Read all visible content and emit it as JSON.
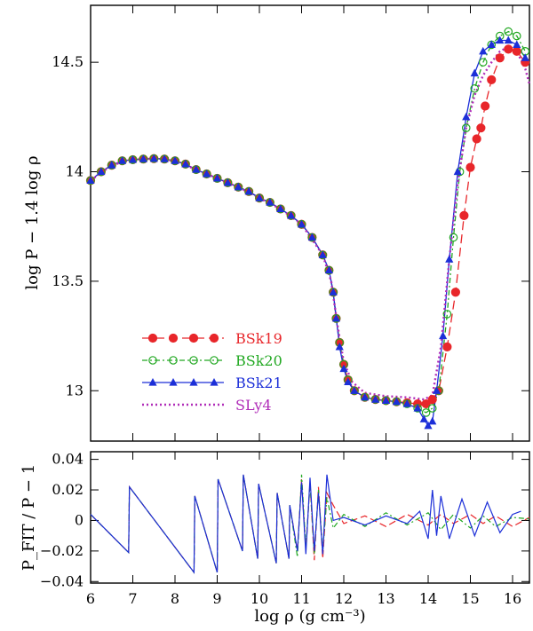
{
  "chart_data": [
    {
      "type": "line",
      "panel": "top",
      "ylabel": "log P − 1.4 log ρ",
      "xlim": [
        6,
        16.4
      ],
      "ylim": [
        12.77,
        14.76
      ],
      "xticks": [
        6,
        7,
        8,
        9,
        10,
        11,
        12,
        13,
        14,
        15,
        16
      ],
      "yticks": [
        {
          "v": 13,
          "label": "13"
        },
        {
          "v": 13.5,
          "label": "13.5"
        },
        {
          "v": 14,
          "label": "14"
        },
        {
          "v": 14.5,
          "label": "14.5"
        }
      ],
      "legend": {
        "position": "lower-left",
        "entries": [
          {
            "label": "BSk19",
            "color": "#e8262a"
          },
          {
            "label": "BSk20",
            "color": "#22a822"
          },
          {
            "label": "BSk21",
            "color": "#1c2fd8"
          },
          {
            "label": "SLy4",
            "color": "#b02cb8"
          }
        ]
      },
      "series": [
        {
          "name": "BSk19",
          "color": "#e8262a",
          "marker": "filled-circle",
          "x": [
            6.0,
            6.25,
            6.5,
            6.75,
            7.0,
            7.25,
            7.5,
            7.75,
            8.0,
            8.25,
            8.5,
            8.75,
            9.0,
            9.25,
            9.5,
            9.75,
            10.0,
            10.25,
            10.5,
            10.75,
            11.0,
            11.25,
            11.5,
            11.65,
            11.75,
            11.82,
            11.9,
            12.0,
            12.1,
            12.25,
            12.5,
            12.75,
            13.0,
            13.25,
            13.5,
            13.75,
            13.95,
            14.1,
            14.25,
            14.45,
            14.65,
            14.85,
            15.0,
            15.15,
            15.25,
            15.35,
            15.5,
            15.7,
            15.9,
            16.1,
            16.3
          ],
          "y": [
            13.96,
            14.0,
            14.03,
            14.05,
            14.055,
            14.058,
            14.06,
            14.058,
            14.05,
            14.035,
            14.01,
            13.99,
            13.97,
            13.95,
            13.93,
            13.91,
            13.88,
            13.86,
            13.83,
            13.8,
            13.76,
            13.7,
            13.62,
            13.55,
            13.45,
            13.33,
            13.22,
            13.12,
            13.05,
            13.0,
            12.97,
            12.96,
            12.955,
            12.95,
            12.945,
            12.94,
            12.94,
            12.96,
            13.0,
            13.2,
            13.45,
            13.8,
            14.02,
            14.15,
            14.2,
            14.3,
            14.42,
            14.52,
            14.56,
            14.55,
            14.5
          ]
        },
        {
          "name": "BSk20",
          "color": "#22a822",
          "marker": "open-circle",
          "x": [
            6.0,
            6.25,
            6.5,
            6.75,
            7.0,
            7.25,
            7.5,
            7.75,
            8.0,
            8.25,
            8.5,
            8.75,
            9.0,
            9.25,
            9.5,
            9.75,
            10.0,
            10.25,
            10.5,
            10.75,
            11.0,
            11.25,
            11.5,
            11.65,
            11.75,
            11.82,
            11.9,
            12.0,
            12.1,
            12.25,
            12.5,
            12.75,
            13.0,
            13.25,
            13.5,
            13.75,
            13.95,
            14.1,
            14.25,
            14.45,
            14.6,
            14.75,
            14.9,
            15.1,
            15.3,
            15.5,
            15.7,
            15.9,
            16.1,
            16.3
          ],
          "y": [
            13.96,
            14.0,
            14.03,
            14.05,
            14.055,
            14.058,
            14.06,
            14.058,
            14.05,
            14.035,
            14.01,
            13.99,
            13.97,
            13.95,
            13.93,
            13.91,
            13.88,
            13.86,
            13.83,
            13.8,
            13.76,
            13.7,
            13.62,
            13.55,
            13.45,
            13.33,
            13.22,
            13.12,
            13.05,
            13.0,
            12.97,
            12.96,
            12.955,
            12.95,
            12.94,
            12.92,
            12.9,
            12.92,
            13.0,
            13.35,
            13.7,
            14.0,
            14.2,
            14.38,
            14.5,
            14.58,
            14.62,
            14.64,
            14.62,
            14.55
          ]
        },
        {
          "name": "BSk21",
          "color": "#1c2fd8",
          "marker": "filled-triangle",
          "x": [
            6.0,
            6.25,
            6.5,
            6.75,
            7.0,
            7.25,
            7.5,
            7.75,
            8.0,
            8.25,
            8.5,
            8.75,
            9.0,
            9.25,
            9.5,
            9.75,
            10.0,
            10.25,
            10.5,
            10.75,
            11.0,
            11.25,
            11.5,
            11.65,
            11.75,
            11.82,
            11.9,
            12.0,
            12.1,
            12.25,
            12.5,
            12.75,
            13.0,
            13.25,
            13.5,
            13.75,
            13.9,
            14.0,
            14.1,
            14.2,
            14.35,
            14.5,
            14.7,
            14.9,
            15.1,
            15.3,
            15.5,
            15.7,
            15.9,
            16.1,
            16.3
          ],
          "y": [
            13.96,
            14.0,
            14.03,
            14.05,
            14.055,
            14.058,
            14.06,
            14.058,
            14.05,
            14.035,
            14.01,
            13.99,
            13.97,
            13.95,
            13.93,
            13.91,
            13.88,
            13.86,
            13.83,
            13.8,
            13.76,
            13.7,
            13.62,
            13.55,
            13.45,
            13.33,
            13.2,
            13.1,
            13.04,
            13.0,
            12.97,
            12.96,
            12.955,
            12.95,
            12.94,
            12.92,
            12.87,
            12.84,
            12.86,
            13.0,
            13.25,
            13.6,
            14.0,
            14.25,
            14.45,
            14.55,
            14.58,
            14.6,
            14.6,
            14.58,
            14.52
          ]
        },
        {
          "name": "SLy4",
          "color": "#b02cb8",
          "marker": "none",
          "x": [
            6.0,
            6.5,
            7.0,
            7.5,
            8.0,
            8.5,
            9.0,
            9.5,
            10.0,
            10.5,
            11.0,
            11.5,
            11.7,
            11.85,
            12.0,
            12.2,
            12.5,
            13.0,
            13.5,
            13.9,
            14.1,
            14.3,
            14.5,
            14.7,
            14.9,
            15.1,
            15.3,
            15.5,
            15.7,
            15.9,
            16.1,
            16.3,
            16.4
          ],
          "y": [
            13.96,
            14.03,
            14.055,
            14.06,
            14.05,
            14.01,
            13.97,
            13.93,
            13.88,
            13.83,
            13.76,
            13.62,
            13.5,
            13.3,
            13.13,
            13.04,
            12.99,
            12.975,
            12.97,
            12.96,
            12.98,
            13.2,
            13.6,
            13.95,
            14.2,
            14.35,
            14.44,
            14.5,
            14.55,
            14.57,
            14.55,
            14.47,
            14.4
          ]
        }
      ]
    },
    {
      "type": "line",
      "panel": "bottom",
      "xlabel": "log ρ  (g cm⁻³)",
      "ylabel": "P_FIT / P − 1",
      "xlim": [
        6,
        16.4
      ],
      "ylim": [
        -0.041,
        0.045
      ],
      "xticks": [
        6,
        7,
        8,
        9,
        10,
        11,
        12,
        13,
        14,
        15,
        16
      ],
      "yticks": [
        {
          "v": -0.04,
          "label": "−0.04"
        },
        {
          "v": -0.02,
          "label": "−0.02"
        },
        {
          "v": 0,
          "label": "0"
        },
        {
          "v": 0.02,
          "label": "0.02"
        },
        {
          "v": 0.04,
          "label": "0.04"
        }
      ],
      "series": [
        {
          "name": "BSk19",
          "color": "#e8262a",
          "dash": "8,4",
          "x": [
            6.0,
            6.9,
            6.92,
            8.45,
            8.47,
            9.0,
            9.02,
            9.6,
            9.62,
            9.96,
            9.98,
            10.4,
            10.42,
            10.7,
            10.72,
            10.9,
            11.0,
            11.1,
            11.2,
            11.3,
            11.4,
            11.5,
            11.6,
            11.75,
            12.0,
            12.5,
            13.0,
            13.5,
            14.0,
            14.3,
            14.6,
            15.0,
            15.3,
            15.6,
            16.0,
            16.4
          ],
          "y": [
            0.004,
            -0.021,
            0.022,
            -0.034,
            0.016,
            -0.034,
            0.027,
            -0.02,
            0.03,
            -0.025,
            0.024,
            -0.028,
            0.018,
            -0.025,
            0.01,
            -0.02,
            0.027,
            -0.02,
            0.025,
            -0.026,
            0.022,
            -0.025,
            0.018,
            0.01,
            -0.002,
            0.003,
            -0.004,
            0.004,
            -0.003,
            0.004,
            -0.002,
            0.004,
            -0.002,
            0.003,
            -0.004,
            0.002
          ]
        },
        {
          "name": "BSk20",
          "color": "#22a822",
          "dash": "6,3,2,3",
          "x": [
            6.0,
            6.9,
            6.92,
            8.45,
            8.47,
            9.0,
            9.02,
            9.6,
            9.62,
            9.96,
            9.98,
            10.4,
            10.42,
            10.7,
            10.72,
            10.9,
            11.0,
            11.1,
            11.2,
            11.3,
            11.4,
            11.5,
            11.6,
            11.75,
            12.0,
            12.5,
            13.0,
            13.5,
            14.0,
            14.3,
            14.6,
            15.0,
            15.3,
            15.6,
            16.0,
            16.4
          ],
          "y": [
            0.004,
            -0.021,
            0.022,
            -0.034,
            0.016,
            -0.034,
            0.027,
            -0.02,
            0.03,
            -0.025,
            0.024,
            -0.028,
            0.018,
            -0.025,
            0.01,
            -0.024,
            0.03,
            -0.018,
            0.024,
            -0.022,
            0.02,
            -0.02,
            0.015,
            -0.005,
            0.004,
            -0.004,
            0.005,
            -0.003,
            0.005,
            -0.006,
            0.004,
            -0.005,
            0.003,
            -0.004,
            0.002,
            0.001
          ]
        },
        {
          "name": "BSk21",
          "color": "#1c2fd8",
          "dash": "",
          "x": [
            6.0,
            6.9,
            6.92,
            8.45,
            8.47,
            9.0,
            9.02,
            9.6,
            9.62,
            9.96,
            9.98,
            10.4,
            10.42,
            10.7,
            10.72,
            10.9,
            11.0,
            11.1,
            11.2,
            11.3,
            11.4,
            11.5,
            11.6,
            11.75,
            12.0,
            12.5,
            13.0,
            13.5,
            13.8,
            14.0,
            14.1,
            14.2,
            14.3,
            14.5,
            14.8,
            15.1,
            15.4,
            15.7,
            16.0,
            16.2
          ],
          "y": [
            0.004,
            -0.021,
            0.022,
            -0.034,
            0.016,
            -0.034,
            0.027,
            -0.02,
            0.03,
            -0.025,
            0.024,
            -0.028,
            0.018,
            -0.025,
            0.01,
            -0.02,
            0.025,
            -0.022,
            0.028,
            -0.02,
            0.018,
            -0.022,
            0.03,
            0.0,
            0.002,
            -0.003,
            0.003,
            -0.002,
            0.006,
            -0.012,
            0.02,
            -0.01,
            0.016,
            -0.012,
            0.014,
            -0.01,
            0.012,
            -0.008,
            0.004,
            0.006
          ]
        }
      ]
    }
  ]
}
